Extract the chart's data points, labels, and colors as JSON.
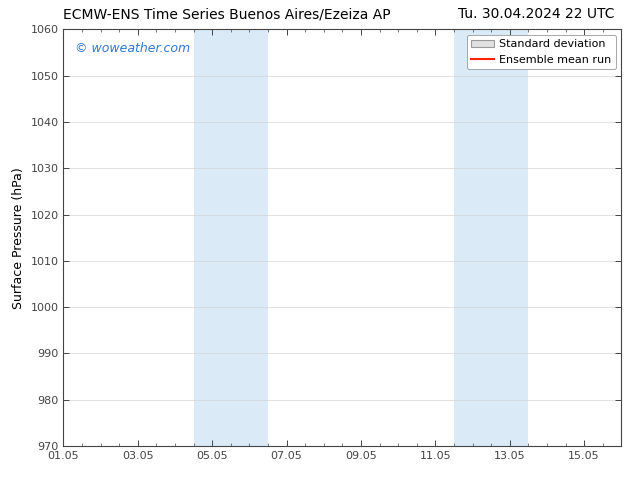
{
  "title_left": "ECMW-ENS Time Series Buenos Aires/Ezeiza AP",
  "title_right": "Tu. 30.04.2024 22 UTC",
  "ylabel": "Surface Pressure (hPa)",
  "xlim": [
    0,
    15
  ],
  "ylim": [
    970,
    1060
  ],
  "yticks": [
    970,
    980,
    990,
    1000,
    1010,
    1020,
    1030,
    1040,
    1050,
    1060
  ],
  "xtick_labels": [
    "01.05",
    "03.05",
    "05.05",
    "07.05",
    "09.05",
    "11.05",
    "13.05",
    "15.05"
  ],
  "xtick_positions": [
    0,
    2,
    4,
    6,
    8,
    10,
    12,
    14
  ],
  "shaded_bands": [
    {
      "x_start": 3.5,
      "x_end": 5.5
    },
    {
      "x_start": 10.5,
      "x_end": 12.5
    }
  ],
  "shade_color": "#daeaf7",
  "bg_color": "#ffffff",
  "watermark": "© woweather.com",
  "watermark_color": "#3377cc",
  "legend_std_facecolor": "#e0e0e0",
  "legend_std_edgecolor": "#999999",
  "legend_mean_color": "#ff2200",
  "title_fontsize": 10,
  "ylabel_fontsize": 9,
  "tick_fontsize": 8,
  "watermark_fontsize": 9,
  "legend_fontsize": 8,
  "spine_color": "#444444",
  "tick_color": "#444444",
  "grid_color": "#cccccc"
}
